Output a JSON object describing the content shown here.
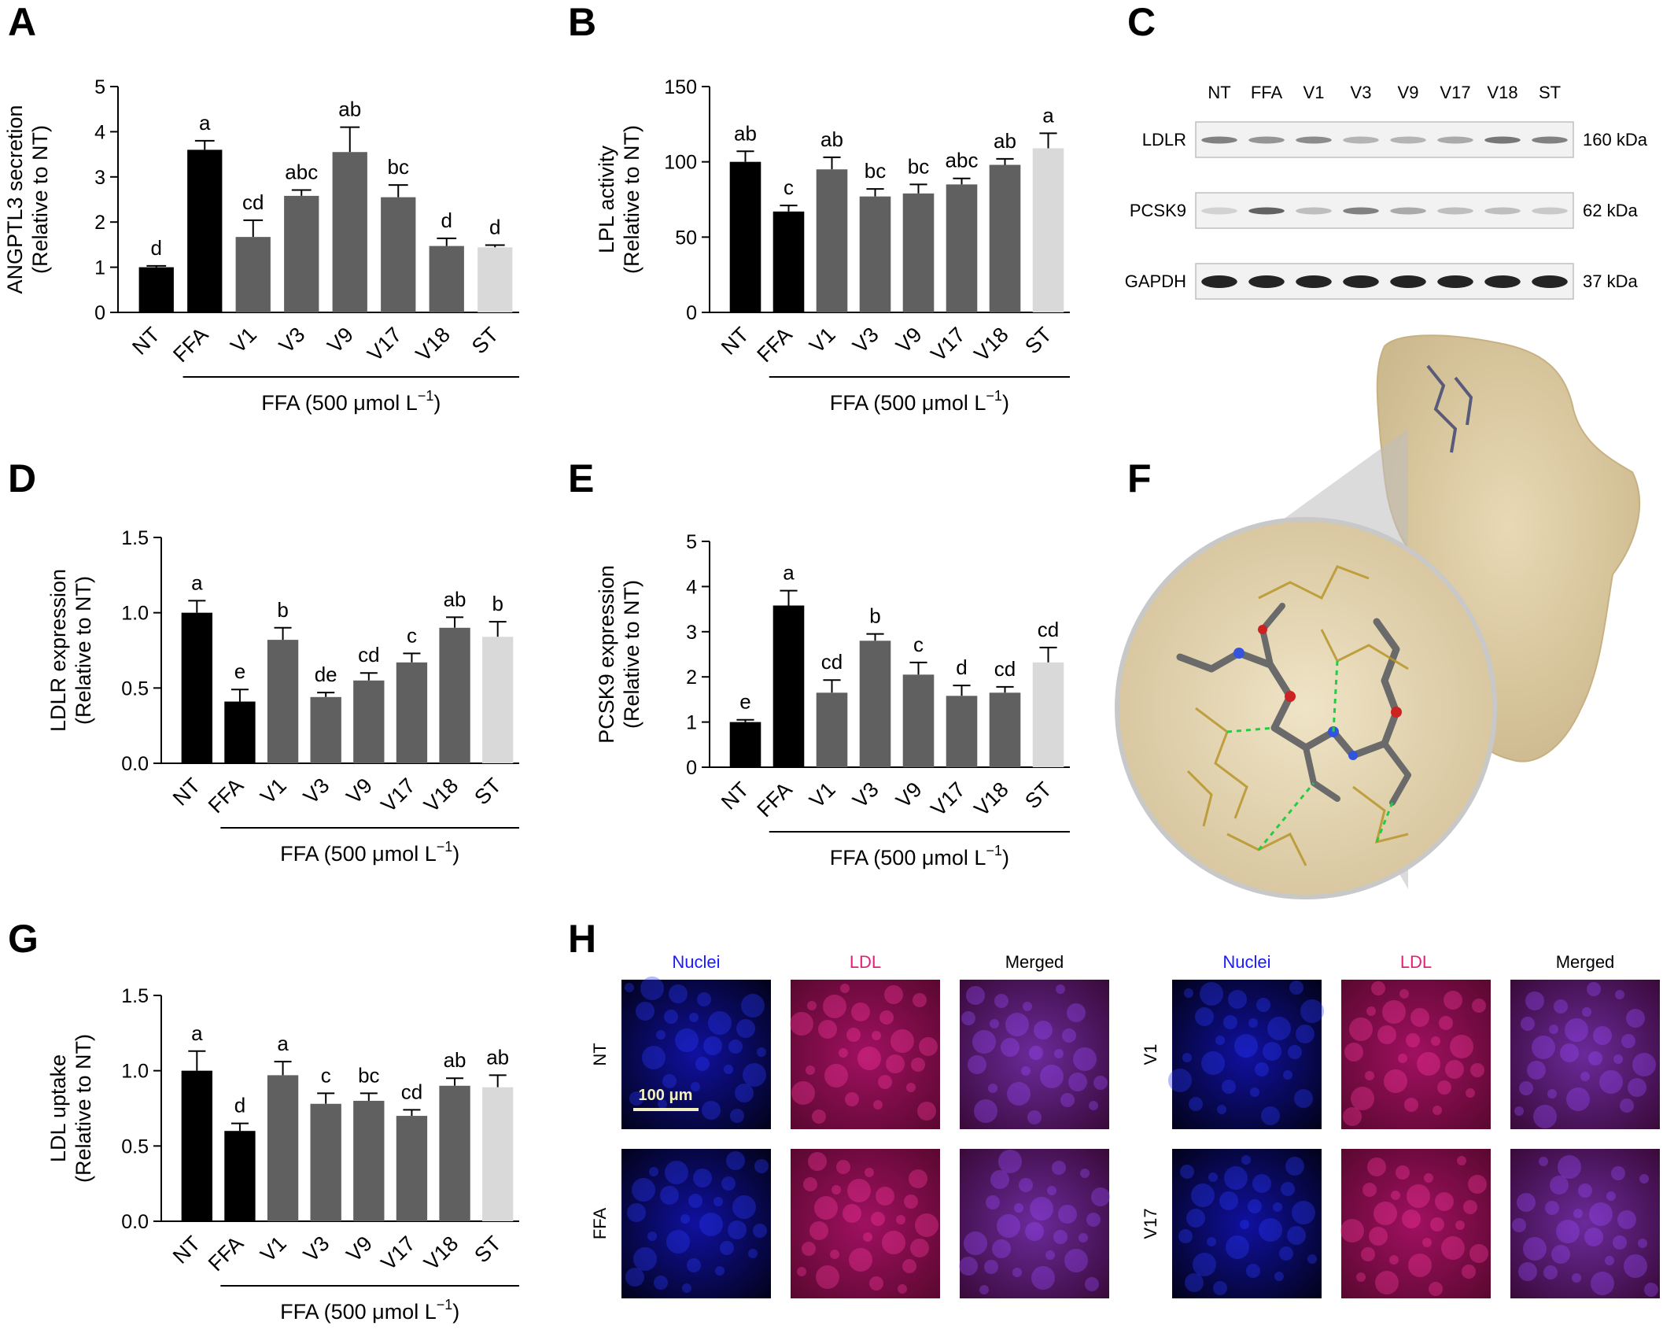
{
  "figure": {
    "panel_letters": [
      "A",
      "B",
      "C",
      "D",
      "E",
      "F",
      "G",
      "H"
    ],
    "colors": {
      "black": "#000000",
      "dark_gray": "#606060",
      "light_gray": "#d9d9d9"
    }
  },
  "chart_data": [
    {
      "panel": "A",
      "type": "bar",
      "categories": [
        "NT",
        "FFA",
        "V1",
        "V3",
        "V9",
        "V17",
        "V18",
        "ST"
      ],
      "values": [
        1.0,
        3.6,
        1.67,
        2.58,
        3.55,
        2.55,
        1.47,
        1.44
      ],
      "errors": [
        0.03,
        0.2,
        0.37,
        0.13,
        0.55,
        0.27,
        0.17,
        0.05
      ],
      "labels": [
        "d",
        "a",
        "cd",
        "abc",
        "ab",
        "bc",
        "d",
        "d"
      ],
      "bar_colors": [
        "#000000",
        "#000000",
        "#606060",
        "#606060",
        "#606060",
        "#606060",
        "#606060",
        "#d9d9d9"
      ],
      "ylabel_line1": "ANGPTL3 secretion",
      "ylabel_line2": "(Relative to NT)",
      "ylim": [
        0,
        5
      ],
      "yticks": [
        "0",
        "1",
        "2",
        "3",
        "4",
        "5"
      ],
      "xgroup_label": "FFA (500 μmol L",
      "xgroup_exp": "−1",
      "xgroup_close": ")"
    },
    {
      "panel": "B",
      "type": "bar",
      "categories": [
        "NT",
        "FFA",
        "V1",
        "V3",
        "V9",
        "V17",
        "V18",
        "ST"
      ],
      "values": [
        100,
        67,
        95,
        77,
        79,
        85,
        98,
        109
      ],
      "errors": [
        7,
        4,
        8,
        5,
        6,
        4,
        4,
        10
      ],
      "labels": [
        "ab",
        "c",
        "ab",
        "bc",
        "bc",
        "abc",
        "ab",
        "a"
      ],
      "bar_colors": [
        "#000000",
        "#000000",
        "#606060",
        "#606060",
        "#606060",
        "#606060",
        "#606060",
        "#d9d9d9"
      ],
      "ylabel_line1": "LPL activity",
      "ylabel_line2": "(Relative to NT)",
      "ylim": [
        0,
        150
      ],
      "yticks": [
        "0",
        "50",
        "100",
        "150"
      ],
      "xgroup_label": "FFA (500 μmol L",
      "xgroup_exp": "−1",
      "xgroup_close": ")"
    },
    {
      "panel": "D",
      "type": "bar",
      "categories": [
        "NT",
        "FFA",
        "V1",
        "V3",
        "V9",
        "V17",
        "V18",
        "ST"
      ],
      "values": [
        1.0,
        0.41,
        0.82,
        0.44,
        0.55,
        0.67,
        0.9,
        0.84
      ],
      "errors": [
        0.08,
        0.08,
        0.08,
        0.03,
        0.05,
        0.06,
        0.07,
        0.1
      ],
      "labels": [
        "a",
        "e",
        "b",
        "de",
        "cd",
        "c",
        "ab",
        "b"
      ],
      "bar_colors": [
        "#000000",
        "#000000",
        "#606060",
        "#606060",
        "#606060",
        "#606060",
        "#606060",
        "#d9d9d9"
      ],
      "ylabel_line1": "LDLR expression",
      "ylabel_line2": "(Relative to NT)",
      "ylim": [
        0,
        1.5
      ],
      "yticks": [
        "0.0",
        "0.5",
        "1.0",
        "1.5"
      ],
      "xgroup_label": "FFA (500 μmol L",
      "xgroup_exp": "−1",
      "xgroup_close": ")"
    },
    {
      "panel": "E",
      "type": "bar",
      "categories": [
        "NT",
        "FFA",
        "V1",
        "V3",
        "V9",
        "V17",
        "V18",
        "ST"
      ],
      "values": [
        1.0,
        3.58,
        1.65,
        2.8,
        2.05,
        1.58,
        1.65,
        2.32
      ],
      "errors": [
        0.05,
        0.33,
        0.28,
        0.15,
        0.27,
        0.23,
        0.13,
        0.33
      ],
      "labels": [
        "e",
        "a",
        "cd",
        "b",
        "c",
        "d",
        "cd",
        "cd"
      ],
      "bar_colors": [
        "#000000",
        "#000000",
        "#606060",
        "#606060",
        "#606060",
        "#606060",
        "#606060",
        "#d9d9d9"
      ],
      "ylabel_line1": "PCSK9 expression",
      "ylabel_line2": "(Relative to NT)",
      "ylim": [
        0,
        5
      ],
      "yticks": [
        "0",
        "1",
        "2",
        "3",
        "4",
        "5"
      ],
      "xgroup_label": "FFA (500 μmol L",
      "xgroup_exp": "−1",
      "xgroup_close": ")"
    },
    {
      "panel": "G",
      "type": "bar",
      "categories": [
        "NT",
        "FFA",
        "V1",
        "V3",
        "V9",
        "V17",
        "V18",
        "ST"
      ],
      "values": [
        1.0,
        0.6,
        0.97,
        0.78,
        0.8,
        0.7,
        0.9,
        0.89
      ],
      "errors": [
        0.13,
        0.05,
        0.09,
        0.07,
        0.05,
        0.04,
        0.05,
        0.08
      ],
      "labels": [
        "a",
        "d",
        "a",
        "c",
        "bc",
        "cd",
        "ab",
        "ab"
      ],
      "bar_colors": [
        "#000000",
        "#000000",
        "#606060",
        "#606060",
        "#606060",
        "#606060",
        "#606060",
        "#d9d9d9"
      ],
      "ylabel_line1": "LDL uptake",
      "ylabel_line2": "(Relative to NT)",
      "ylim": [
        0,
        1.5
      ],
      "yticks": [
        "0.0",
        "0.5",
        "1.0",
        "1.5"
      ],
      "xgroup_label": "FFA (500 μmol L",
      "xgroup_exp": "−1",
      "xgroup_close": ")"
    }
  ],
  "western_blot": {
    "lanes": [
      "NT",
      "FFA",
      "V1",
      "V3",
      "V9",
      "V17",
      "V18",
      "ST"
    ],
    "rows": [
      {
        "protein": "LDLR",
        "size": "160 kDa",
        "intensity": [
          0.55,
          0.45,
          0.5,
          0.3,
          0.3,
          0.35,
          0.6,
          0.55
        ]
      },
      {
        "protein": "PCSK9",
        "size": "62 kDa",
        "intensity": [
          0.15,
          0.7,
          0.25,
          0.55,
          0.35,
          0.25,
          0.25,
          0.2
        ]
      },
      {
        "protein": "GAPDH",
        "size": "37 kDa",
        "intensity": [
          1,
          1,
          1,
          1,
          1,
          1,
          1,
          1
        ]
      }
    ]
  },
  "microscopy": {
    "channels": [
      "Nuclei",
      "LDL",
      "Merged"
    ],
    "channel_colors": [
      "#1a1aff",
      "#e0207a",
      "#000000"
    ],
    "left_rows": [
      "NT",
      "FFA"
    ],
    "right_rows": [
      "V1",
      "V17"
    ],
    "scale_bar": "100 μm"
  }
}
